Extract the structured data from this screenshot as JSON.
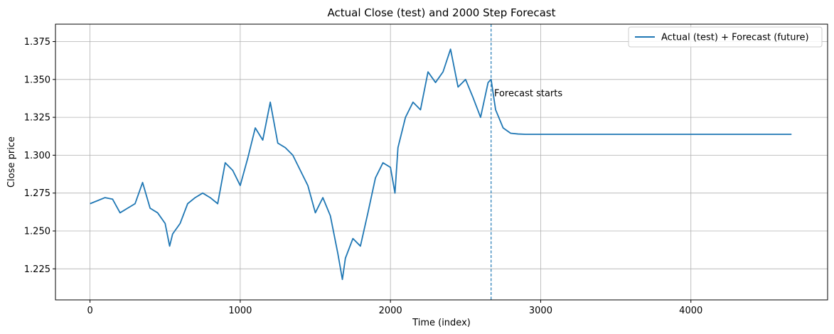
{
  "chart_data": {
    "type": "line",
    "title": "Actual Close (test) and 2000 Step Forecast",
    "xlabel": "Time (index)",
    "ylabel": "Close price",
    "xlim": [
      -230,
      4910
    ],
    "ylim": [
      1.2045,
      1.3865
    ],
    "xticks": [
      0,
      1000,
      2000,
      3000,
      4000
    ],
    "xtick_labels": [
      "0",
      "1000",
      "2000",
      "3000",
      "4000"
    ],
    "yticks": [
      1.225,
      1.25,
      1.275,
      1.3,
      1.325,
      1.35,
      1.375
    ],
    "ytick_labels": [
      "1.225",
      "1.250",
      "1.275",
      "1.300",
      "1.325",
      "1.350",
      "1.375"
    ],
    "grid": true,
    "legend_position": "top-right",
    "color": "#1f77b4",
    "series": [
      {
        "name": "Actual (test) + Forecast (future)",
        "x": [
          0,
          50,
          100,
          150,
          200,
          250,
          300,
          350,
          400,
          450,
          500,
          530,
          550,
          600,
          650,
          700,
          750,
          800,
          850,
          900,
          950,
          1000,
          1050,
          1100,
          1150,
          1200,
          1250,
          1300,
          1350,
          1400,
          1450,
          1500,
          1550,
          1600,
          1650,
          1680,
          1700,
          1750,
          1800,
          1850,
          1900,
          1950,
          2000,
          2030,
          2050,
          2100,
          2150,
          2200,
          2250,
          2300,
          2350,
          2400,
          2450,
          2500,
          2550,
          2600,
          2650,
          2670,
          2700,
          2750,
          2800,
          2850,
          2900,
          3000,
          3500,
          4000,
          4500,
          4670
        ],
        "y": [
          1.268,
          1.27,
          1.272,
          1.271,
          1.262,
          1.265,
          1.268,
          1.282,
          1.265,
          1.262,
          1.255,
          1.24,
          1.248,
          1.255,
          1.268,
          1.272,
          1.275,
          1.272,
          1.268,
          1.295,
          1.29,
          1.28,
          1.298,
          1.318,
          1.31,
          1.335,
          1.308,
          1.305,
          1.3,
          1.29,
          1.28,
          1.262,
          1.272,
          1.26,
          1.235,
          1.218,
          1.232,
          1.245,
          1.24,
          1.262,
          1.285,
          1.295,
          1.292,
          1.275,
          1.305,
          1.325,
          1.335,
          1.33,
          1.355,
          1.348,
          1.355,
          1.37,
          1.345,
          1.35,
          1.338,
          1.325,
          1.348,
          1.35,
          1.33,
          1.318,
          1.3145,
          1.314,
          1.3138,
          1.3138,
          1.3138,
          1.3138,
          1.3138,
          1.3138
        ]
      }
    ],
    "forecast_start_x": 2670,
    "annotation": {
      "text": "Forecast starts",
      "x": 2690,
      "y": 1.339
    }
  }
}
